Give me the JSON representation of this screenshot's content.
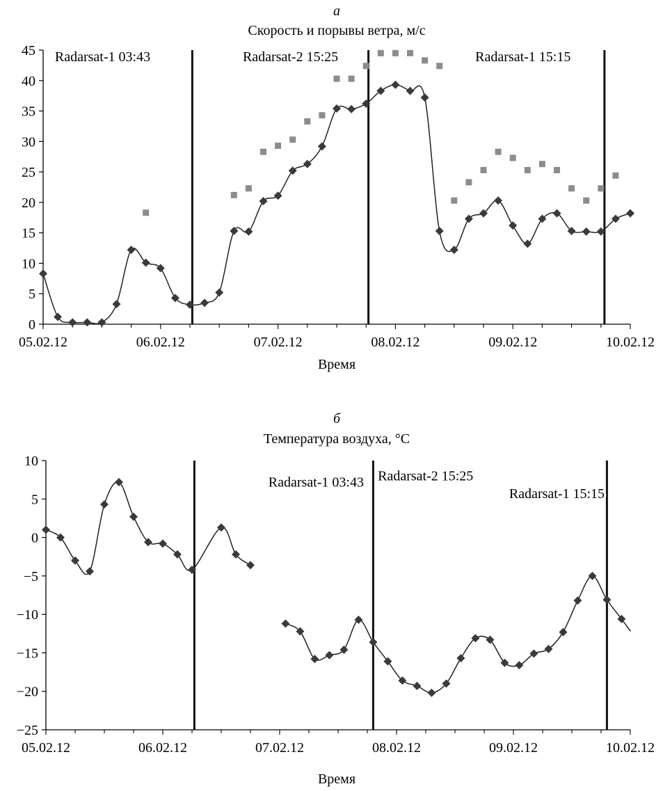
{
  "chart_data": [
    {
      "panel_letter": "а",
      "type": "line",
      "title": "Скорость и порывы ветра, м/с",
      "xlabel": "Время",
      "ylabel": "",
      "ylim": [
        0,
        45
      ],
      "yticks": [
        0,
        5,
        10,
        15,
        20,
        25,
        30,
        35,
        40,
        45
      ],
      "xlim": [
        0,
        5
      ],
      "xticks": [
        {
          "x": 0,
          "label": "05.02.12"
        },
        {
          "x": 1,
          "label": "06.02.12"
        },
        {
          "x": 2,
          "label": "07.02.12"
        },
        {
          "x": 3,
          "label": "08.02.12"
        },
        {
          "x": 4,
          "label": "09.02.12"
        },
        {
          "x": 5,
          "label": "10.02.12"
        }
      ],
      "series": [
        {
          "style": "line-diamond",
          "color": "#3a3a3a",
          "points": [
            [
              0.0,
              8.3
            ],
            [
              0.125,
              1.2
            ],
            [
              0.25,
              0.3
            ],
            [
              0.375,
              0.3
            ],
            [
              0.5,
              0.3
            ],
            [
              0.625,
              3.3
            ],
            [
              0.75,
              12.2
            ],
            [
              0.875,
              10.1
            ],
            [
              1.0,
              9.2
            ],
            [
              1.125,
              4.3
            ],
            [
              1.25,
              3.2
            ],
            [
              1.375,
              3.5
            ],
            [
              1.5,
              5.2
            ],
            [
              1.625,
              15.3
            ],
            [
              1.75,
              15.2
            ],
            [
              1.875,
              20.2
            ],
            [
              2.0,
              21.1
            ],
            [
              2.125,
              25.2
            ],
            [
              2.25,
              26.3
            ],
            [
              2.375,
              29.2
            ],
            [
              2.5,
              35.4
            ],
            [
              2.625,
              35.3
            ],
            [
              2.75,
              36.2
            ],
            [
              2.875,
              38.3
            ],
            [
              3.0,
              39.3
            ],
            [
              3.125,
              38.3
            ],
            [
              3.25,
              37.2
            ],
            [
              3.375,
              15.3
            ],
            [
              3.5,
              12.2
            ],
            [
              3.625,
              17.3
            ],
            [
              3.75,
              18.2
            ],
            [
              3.875,
              20.3
            ],
            [
              4.0,
              16.2
            ],
            [
              4.125,
              13.2
            ],
            [
              4.25,
              17.3
            ],
            [
              4.375,
              18.2
            ],
            [
              4.5,
              15.3
            ],
            [
              4.625,
              15.2
            ],
            [
              4.75,
              15.2
            ],
            [
              4.875,
              17.3
            ],
            [
              5.0,
              18.2
            ]
          ]
        },
        {
          "style": "square-markers",
          "color": "#8c8c8c",
          "points": [
            [
              0.875,
              18.3
            ],
            [
              1.625,
              21.2
            ],
            [
              1.75,
              22.3
            ],
            [
              1.875,
              28.3
            ],
            [
              2.0,
              29.3
            ],
            [
              2.125,
              30.3
            ],
            [
              2.25,
              33.3
            ],
            [
              2.375,
              34.3
            ],
            [
              2.5,
              40.3
            ],
            [
              2.625,
              40.3
            ],
            [
              2.75,
              42.4
            ],
            [
              2.875,
              44.5
            ],
            [
              3.0,
              44.5
            ],
            [
              3.125,
              44.5
            ],
            [
              3.25,
              43.3
            ],
            [
              3.375,
              42.4
            ],
            [
              3.5,
              20.3
            ],
            [
              3.625,
              23.3
            ],
            [
              3.75,
              25.3
            ],
            [
              3.875,
              28.3
            ],
            [
              4.0,
              27.3
            ],
            [
              4.125,
              25.3
            ],
            [
              4.25,
              26.3
            ],
            [
              4.375,
              25.3
            ],
            [
              4.5,
              22.3
            ],
            [
              4.625,
              20.3
            ],
            [
              4.75,
              22.3
            ],
            [
              4.875,
              24.4
            ]
          ]
        }
      ],
      "vlines": [
        1.27,
        2.77,
        4.78
      ],
      "annotations": [
        {
          "text": "Radarsat-1 03:43",
          "x": 0.1,
          "y": 43.2,
          "anchor": "start"
        },
        {
          "text": "Radarsat-2 15:25",
          "x": 1.7,
          "y": 43.2,
          "anchor": "start"
        },
        {
          "text": "Radarsat-1 15:15",
          "x": 3.68,
          "y": 43.2,
          "anchor": "start"
        }
      ]
    },
    {
      "panel_letter": "б",
      "type": "line",
      "title": "Температура воздуха, °С",
      "xlabel": "Время",
      "ylabel": "",
      "ylim": [
        -25,
        10
      ],
      "yticks": [
        -25,
        -20,
        -15,
        -10,
        -5,
        0,
        5,
        10
      ],
      "xlim": [
        0,
        5
      ],
      "xticks": [
        {
          "x": 0,
          "label": "05.02.12"
        },
        {
          "x": 1,
          "label": "06.02.12"
        },
        {
          "x": 2,
          "label": "07.02.12"
        },
        {
          "x": 3,
          "label": "08.02.12"
        },
        {
          "x": 4,
          "label": "09.02.12"
        },
        {
          "x": 5,
          "label": "10.02.12"
        }
      ],
      "series": [
        {
          "style": "line-diamond",
          "color": "#3a3a3a",
          "segments": [
            [
              [
                0.0,
                1.0
              ],
              [
                0.125,
                0.0
              ],
              [
                0.25,
                -3.0
              ],
              [
                0.375,
                -4.4
              ],
              [
                0.5,
                4.3
              ],
              [
                0.625,
                7.2
              ],
              [
                0.75,
                2.7
              ],
              [
                0.875,
                -0.6
              ],
              [
                1.0,
                -0.8
              ],
              [
                1.125,
                -2.2
              ],
              [
                1.25,
                -4.2
              ],
              [
                1.5,
                1.3
              ],
              [
                1.625,
                -2.2
              ],
              [
                1.75,
                -3.6
              ]
            ],
            [
              [
                2.05,
                -11.2
              ],
              [
                2.175,
                -12.2
              ],
              [
                2.3,
                -15.8
              ],
              [
                2.425,
                -15.3
              ],
              [
                2.55,
                -14.6
              ],
              [
                2.675,
                -10.7
              ],
              [
                2.8,
                -13.6
              ],
              [
                2.925,
                -16.1
              ],
              [
                3.05,
                -18.6
              ],
              [
                3.175,
                -19.3
              ],
              [
                3.3,
                -20.2
              ],
              [
                3.425,
                -19.0
              ],
              [
                3.55,
                -15.7
              ],
              [
                3.675,
                -13.1
              ],
              [
                3.8,
                -13.3
              ],
              [
                3.925,
                -16.3
              ],
              [
                4.05,
                -16.6
              ],
              [
                4.175,
                -15.1
              ],
              [
                4.3,
                -14.5
              ],
              [
                4.425,
                -12.3
              ],
              [
                4.55,
                -8.2
              ],
              [
                4.675,
                -5.0
              ],
              [
                4.8,
                -8.1
              ],
              [
                4.925,
                -10.6
              ],
              [
                5.05,
                -12.2
              ]
            ]
          ]
        }
      ],
      "vlines": [
        1.27,
        2.8,
        4.8
      ],
      "annotations": [
        {
          "text": "Radarsat-1 03:43",
          "x": 2.72,
          "y": 6.6,
          "anchor": "end"
        },
        {
          "text": "Radarsat-2 15:25",
          "x": 2.84,
          "y": 7.4,
          "anchor": "start"
        },
        {
          "text": "Radarsat-1 15:15",
          "x": 4.78,
          "y": 5.1,
          "anchor": "end"
        }
      ]
    }
  ]
}
